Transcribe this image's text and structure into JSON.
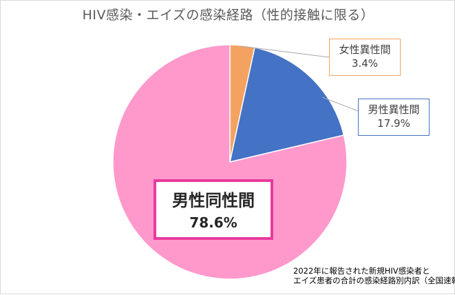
{
  "title": "HIV感染・エイズの感染経路（性的接触に限る）",
  "source_note": {
    "line1": "2022年に報告された新規HIV感染者と",
    "line2": "エイズ患者の合計の感染経路別内訳（全国速報値）"
  },
  "colors": {
    "female_hetero": "#f4a261",
    "male_hetero": "#4472c4",
    "male_homo": "#ff99cc"
  },
  "chart_data": {
    "type": "pie",
    "title": "HIV感染・エイズの感染経路（性的接触に限る）",
    "slices": [
      {
        "label": "女性異性間",
        "value": 3.4,
        "display": "3.4%"
      },
      {
        "label": "男性異性間",
        "value": 17.9,
        "display": "17.9%"
      },
      {
        "label": "男性同性間",
        "value": 78.6,
        "display": "78.6%"
      }
    ]
  }
}
